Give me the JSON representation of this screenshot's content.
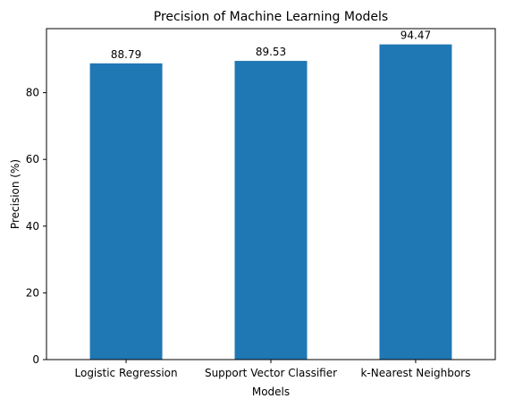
{
  "chart_data": {
    "type": "bar",
    "title": "Precision of Machine Learning Models",
    "xlabel": "Models",
    "ylabel": "Precision (%)",
    "categories": [
      "Logistic Regression",
      "Support Vector Classifier",
      "k-Nearest Neighbors"
    ],
    "values": [
      88.79,
      89.53,
      94.47
    ],
    "data_labels": [
      "88.79",
      "89.53",
      "94.47"
    ],
    "yticks": [
      0,
      20,
      40,
      60,
      80
    ],
    "ytick_labels": [
      "0",
      "20",
      "40",
      "60",
      "80"
    ],
    "ylim": [
      0,
      99.2
    ],
    "grid": false,
    "bar_color": "#1f77b4",
    "axis_color": "#000000"
  }
}
